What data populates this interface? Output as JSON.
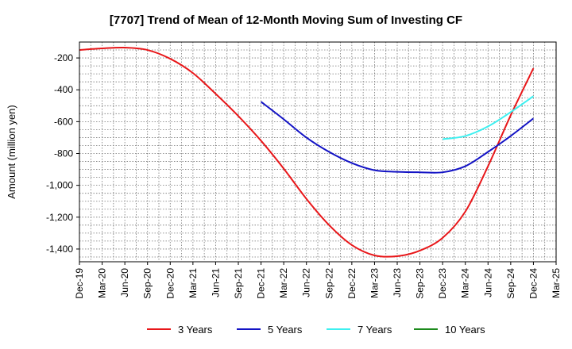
{
  "chart_data": {
    "type": "line",
    "title": "[7707]  Trend of Mean of 12-Month Moving Sum of Investing CF",
    "xlabel": "",
    "ylabel": "Amount (million yen)",
    "ylim": [
      -1480,
      -100
    ],
    "yticks": [
      -200,
      -400,
      -600,
      -800,
      -1000,
      -1200,
      -1400
    ],
    "ytick_labels": [
      "-200",
      "-400",
      "-600",
      "-800",
      "-1,000",
      "-1,200",
      "-1,400"
    ],
    "categories": [
      "Dec-19",
      "Mar-20",
      "Jun-20",
      "Sep-20",
      "Dec-20",
      "Mar-21",
      "Jun-21",
      "Sep-21",
      "Dec-21",
      "Mar-22",
      "Jun-22",
      "Sep-22",
      "Dec-22",
      "Mar-23",
      "Jun-23",
      "Sep-23",
      "Dec-23",
      "Mar-24",
      "Jun-24",
      "Sep-24",
      "Dec-24",
      "Mar-25"
    ],
    "grid": true,
    "legend_position": "bottom",
    "series": [
      {
        "name": "3 Years",
        "color": "#e8171a",
        "values": [
          -150,
          -140,
          -135,
          -150,
          -205,
          -295,
          -425,
          -565,
          -720,
          -895,
          -1085,
          -1250,
          -1375,
          -1440,
          -1445,
          -1410,
          -1330,
          -1165,
          -880,
          -560,
          -265,
          null
        ]
      },
      {
        "name": "5 Years",
        "color": "#1313c5",
        "values": [
          null,
          null,
          null,
          null,
          null,
          null,
          null,
          null,
          -475,
          -585,
          -700,
          -790,
          -860,
          -905,
          -915,
          -918,
          -918,
          -880,
          -790,
          -690,
          -580,
          null
        ]
      },
      {
        "name": "7 Years",
        "color": "#3ef0f0",
        "values": [
          null,
          null,
          null,
          null,
          null,
          null,
          null,
          null,
          null,
          null,
          null,
          null,
          null,
          null,
          null,
          null,
          -710,
          -690,
          -630,
          -540,
          -440,
          null
        ]
      },
      {
        "name": "10 Years",
        "color": "#1c8a1c",
        "values": [
          null,
          null,
          null,
          null,
          null,
          null,
          null,
          null,
          null,
          null,
          null,
          null,
          null,
          null,
          null,
          null,
          null,
          null,
          null,
          null,
          null,
          null
        ]
      }
    ]
  }
}
